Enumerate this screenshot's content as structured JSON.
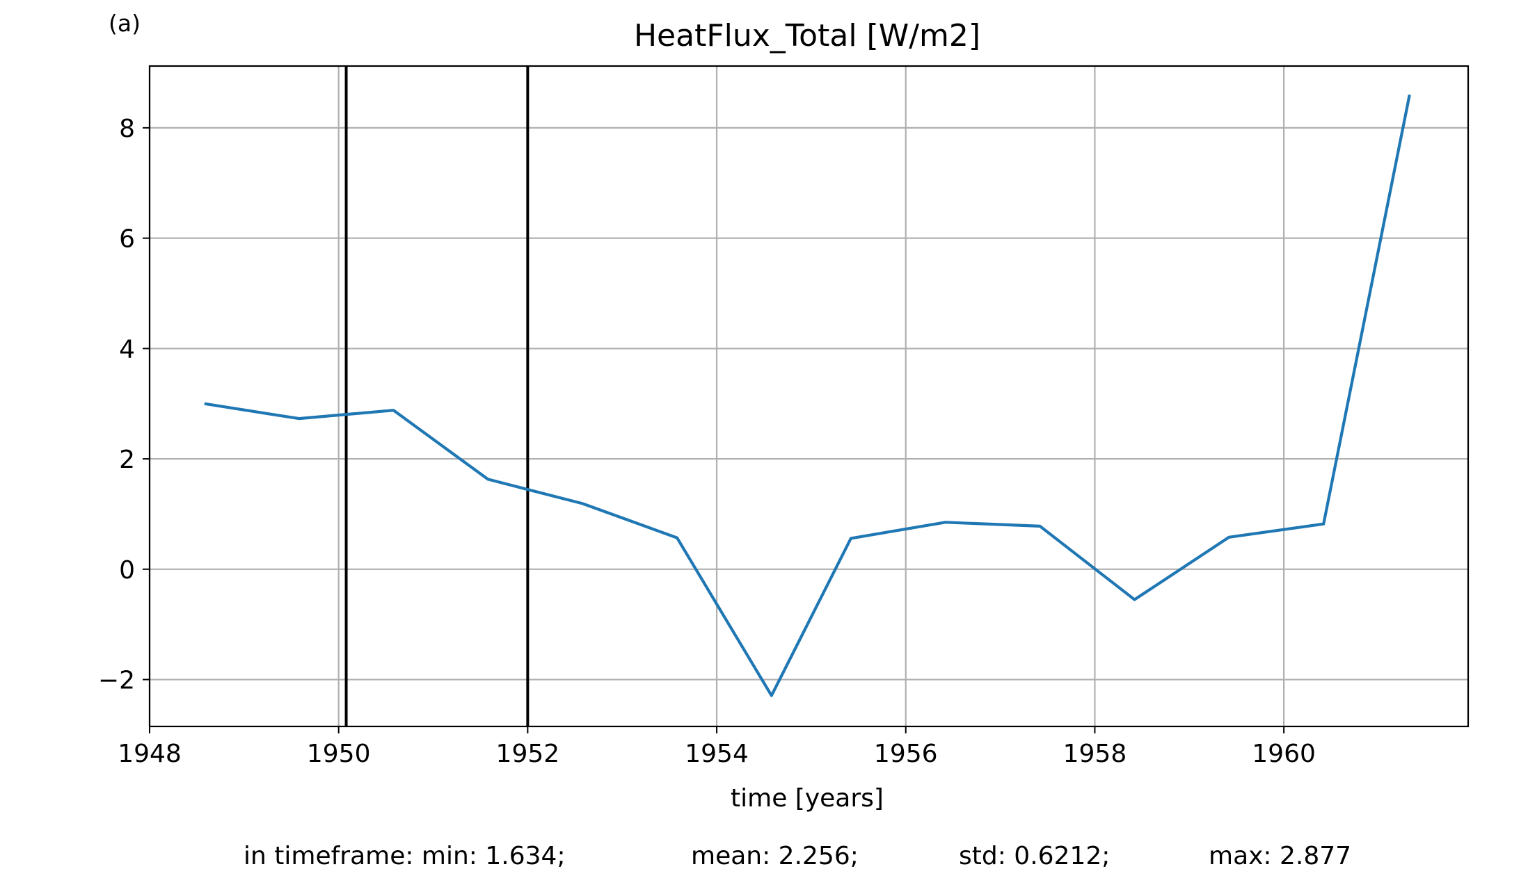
{
  "panel_label": "(a)",
  "chart_data": {
    "type": "line",
    "title": "HeatFlux_Total [W/m2]",
    "xlabel": "time [years]",
    "ylabel": "",
    "xlim": [
      1948.0,
      1961.95
    ],
    "ylim": [
      -2.85,
      9.12
    ],
    "x_ticks": [
      1948,
      1950,
      1952,
      1954,
      1956,
      1958,
      1960
    ],
    "y_ticks": [
      -2,
      0,
      2,
      4,
      6,
      8
    ],
    "grid": true,
    "series": [
      {
        "color": "#1f77b4",
        "x": [
          1948.58,
          1949.58,
          1950.58,
          1951.58,
          1952.58,
          1953.58,
          1954.58,
          1955.42,
          1956.42,
          1957.42,
          1958.42,
          1959.42,
          1960.42,
          1961.33
        ],
        "y": [
          3.0,
          2.73,
          2.88,
          1.63,
          1.19,
          0.57,
          -2.29,
          0.56,
          0.85,
          0.78,
          -0.55,
          0.58,
          0.82,
          8.6
        ]
      }
    ],
    "vertical_lines": [
      {
        "x": 1950.08,
        "color": "#000000"
      },
      {
        "x": 1952.0,
        "color": "#000000"
      }
    ],
    "stats_text": {
      "min": "in timeframe: min: 1.634;",
      "mean": "mean: 2.256;",
      "std": "std: 0.6212;",
      "max": "max: 2.877"
    }
  }
}
